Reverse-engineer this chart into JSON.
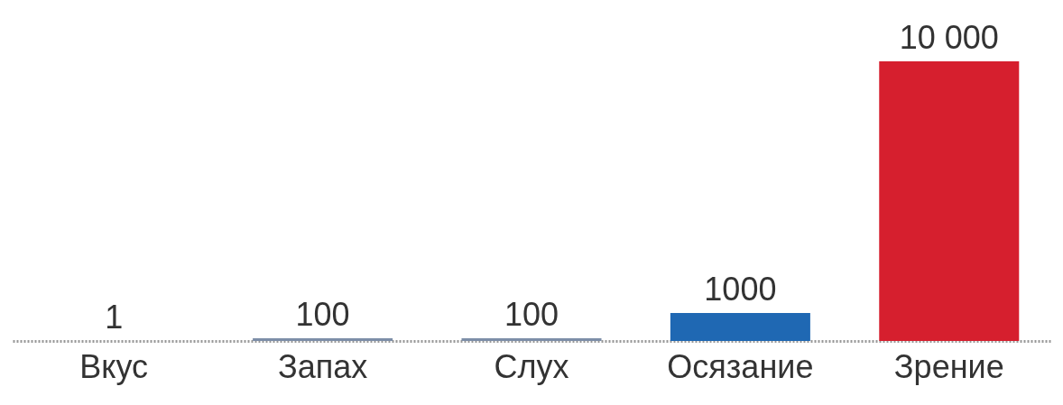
{
  "chart_data": {
    "type": "bar",
    "categories": [
      "Вкус",
      "Запах",
      "Слух",
      "Осязание",
      "Зрение"
    ],
    "values": [
      1,
      100,
      100,
      1000,
      10000
    ],
    "colors": [
      "#8a97a8",
      "#7d8ea8",
      "#7d8ea8",
      "#1f68b3",
      "#d61f2e"
    ],
    "value_labels": [
      "1",
      "100",
      "100",
      "1000",
      "10 000"
    ]
  }
}
